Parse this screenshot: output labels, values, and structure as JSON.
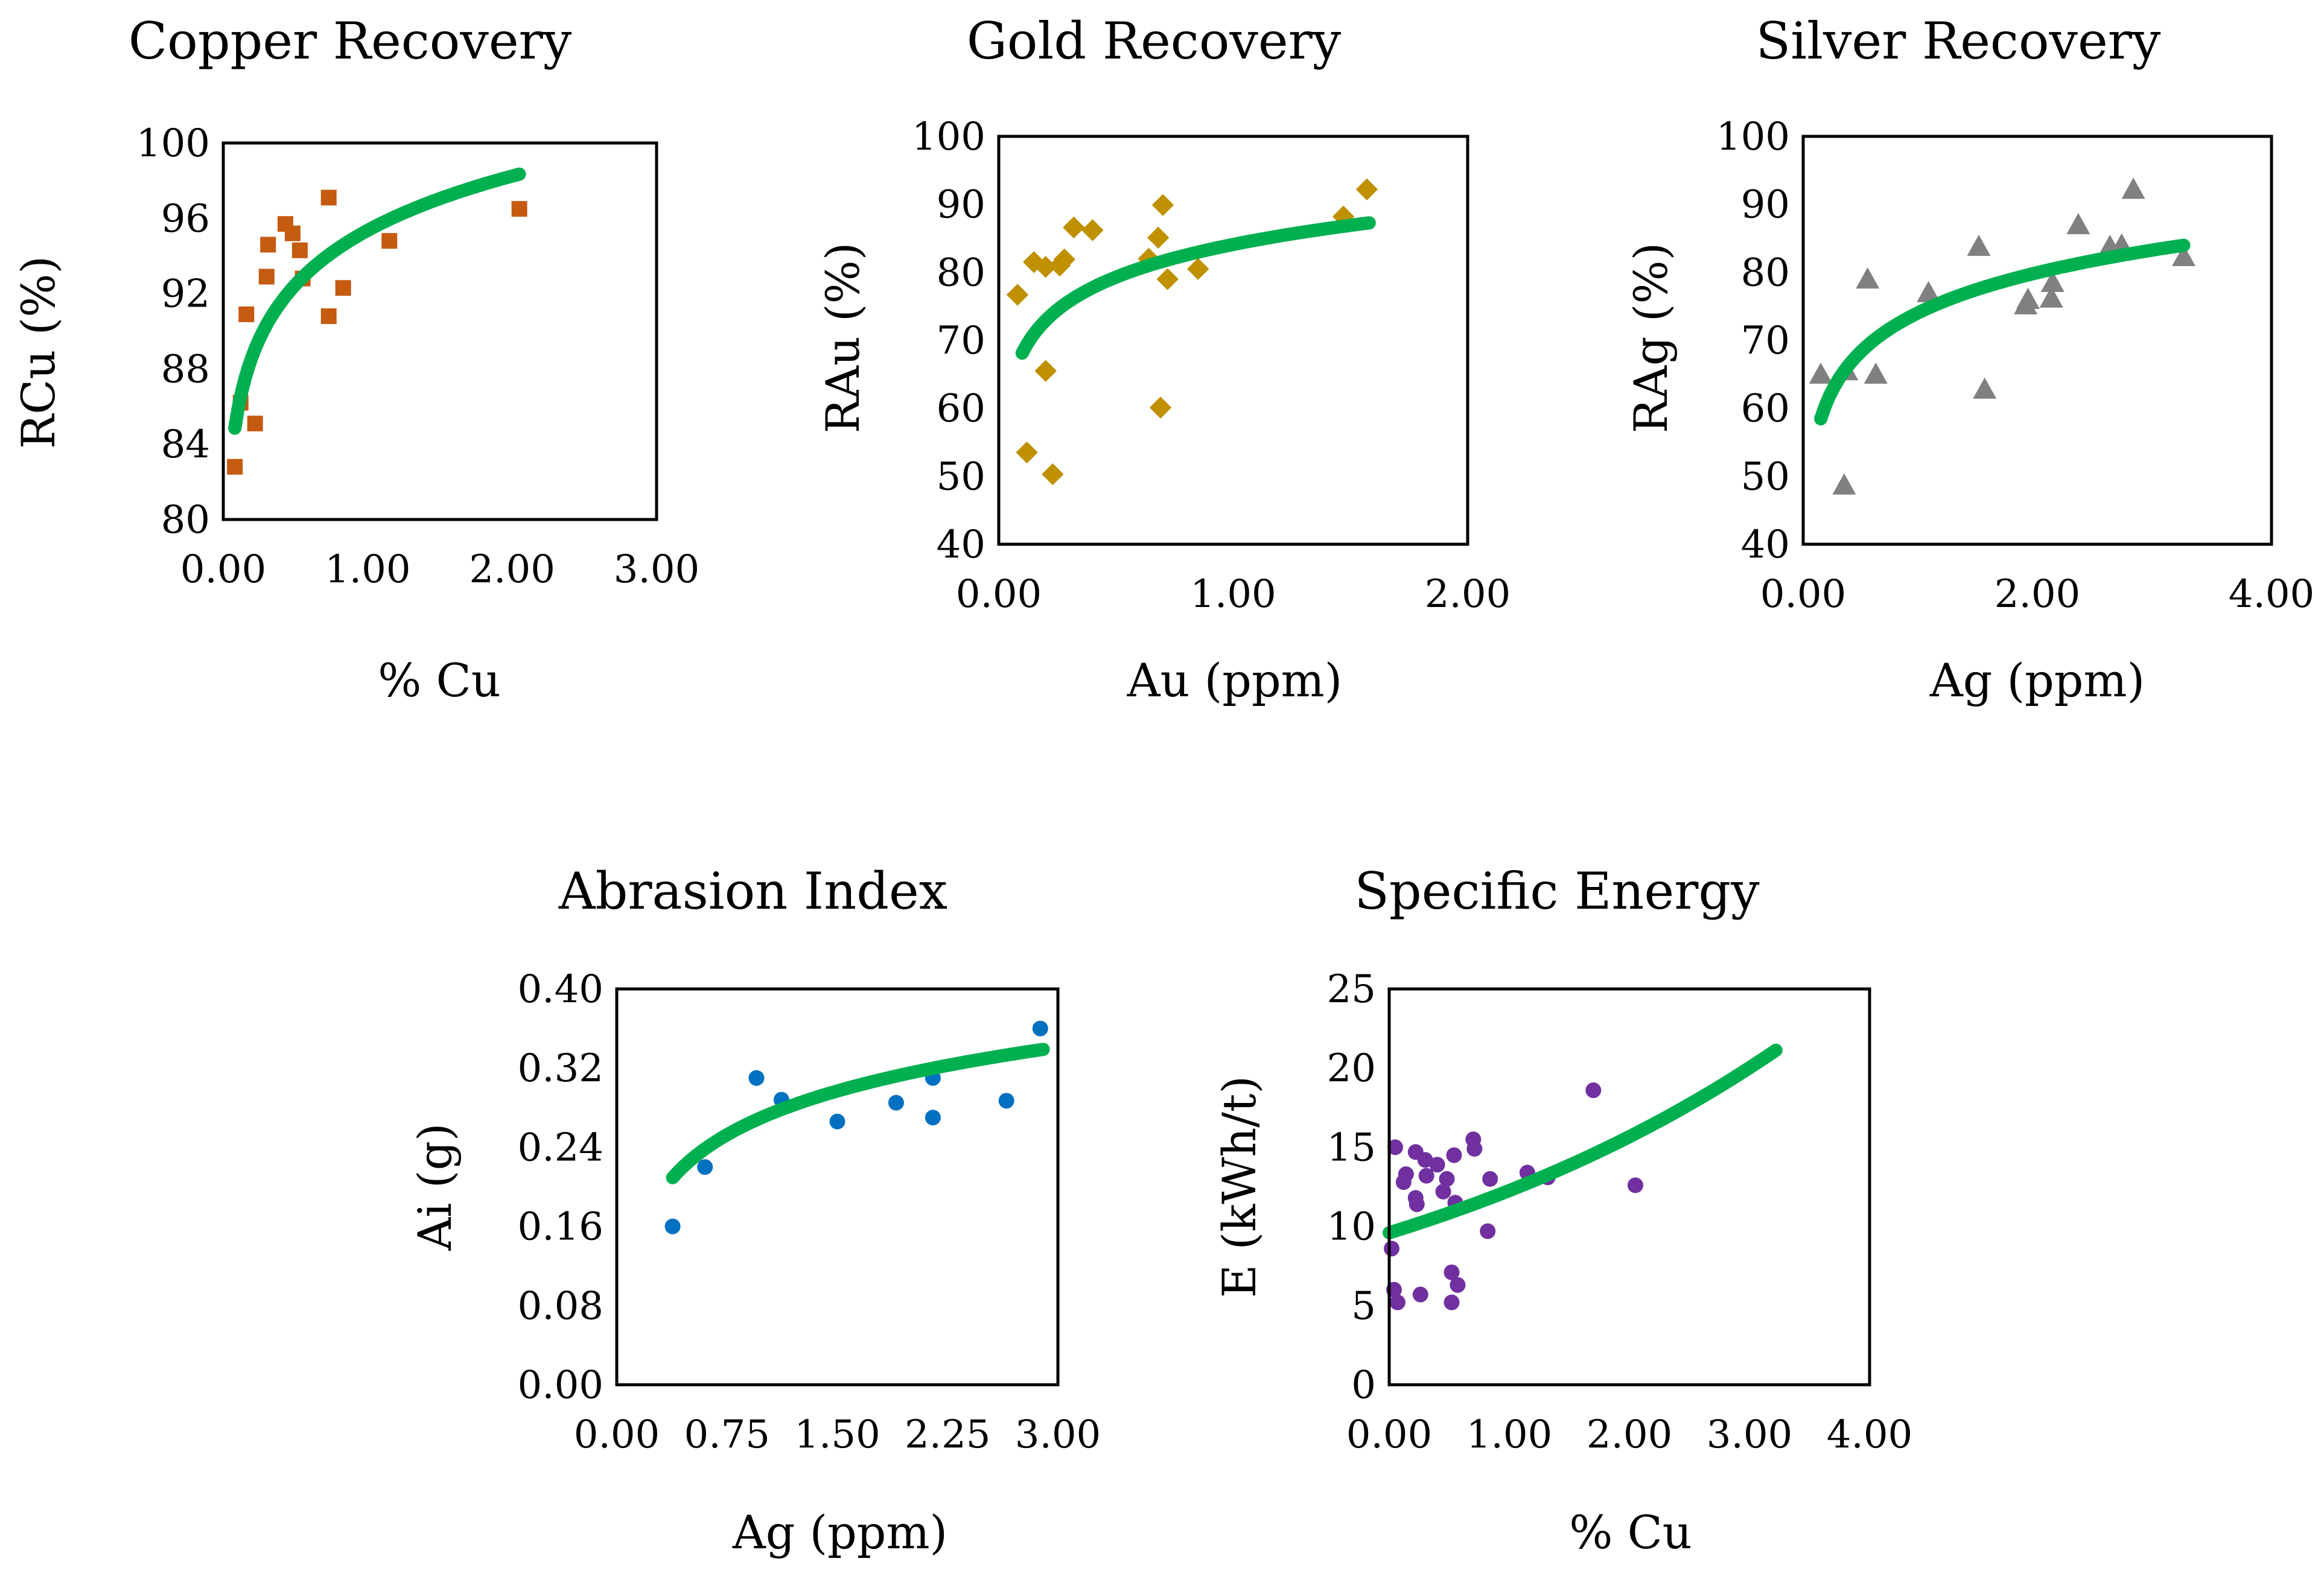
{
  "chart_data": [
    {
      "type": "scatter",
      "title": "Copper Recovery",
      "xlabel": "% Cu",
      "ylabel": "RCu (%)",
      "xlim": [
        0,
        3
      ],
      "ylim": [
        80,
        100
      ],
      "xticks": [
        "0.00",
        "1.00",
        "2.00",
        "3.00"
      ],
      "yticks": [
        "80",
        "84",
        "88",
        "92",
        "96",
        "100"
      ],
      "marker": "square",
      "color": "#C55A11",
      "fit_color": "#00B050",
      "fit": {
        "model": "log",
        "a": 95.36,
        "b": 4.16,
        "x_range": [
          0.08,
          2.05
        ]
      },
      "points": [
        {
          "x": 0.08,
          "y": 82.8
        },
        {
          "x": 0.12,
          "y": 86.2
        },
        {
          "x": 0.16,
          "y": 90.9
        },
        {
          "x": 0.22,
          "y": 85.1
        },
        {
          "x": 0.3,
          "y": 92.9
        },
        {
          "x": 0.31,
          "y": 94.6
        },
        {
          "x": 0.43,
          "y": 95.7
        },
        {
          "x": 0.48,
          "y": 95.2
        },
        {
          "x": 0.53,
          "y": 94.3
        },
        {
          "x": 0.55,
          "y": 92.8
        },
        {
          "x": 0.73,
          "y": 97.1
        },
        {
          "x": 0.73,
          "y": 90.8
        },
        {
          "x": 0.83,
          "y": 92.3
        },
        {
          "x": 1.15,
          "y": 94.8
        },
        {
          "x": 2.05,
          "y": 96.5
        }
      ]
    },
    {
      "type": "scatter",
      "title": "Gold Recovery",
      "xlabel": "Au (ppm)",
      "ylabel": "RAu (%)",
      "xlim": [
        0,
        2
      ],
      "ylim": [
        40,
        100
      ],
      "xticks": [
        "0.00",
        "1.00",
        "2.00"
      ],
      "yticks": [
        "40",
        "50",
        "60",
        "70",
        "80",
        "90",
        "100"
      ],
      "marker": "diamond",
      "color": "#BF9000",
      "fit_color": "#00B050",
      "fit": {
        "model": "log",
        "a": 84.1,
        "b": 6.94,
        "x_range": [
          0.1,
          1.58
        ]
      },
      "points": [
        {
          "x": 0.08,
          "y": 76.7
        },
        {
          "x": 0.12,
          "y": 53.5
        },
        {
          "x": 0.15,
          "y": 81.5
        },
        {
          "x": 0.2,
          "y": 65.5
        },
        {
          "x": 0.2,
          "y": 80.8
        },
        {
          "x": 0.23,
          "y": 50.3
        },
        {
          "x": 0.26,
          "y": 81.0
        },
        {
          "x": 0.28,
          "y": 81.9
        },
        {
          "x": 0.32,
          "y": 86.6
        },
        {
          "x": 0.4,
          "y": 86.2
        },
        {
          "x": 0.64,
          "y": 82.0
        },
        {
          "x": 0.68,
          "y": 85.1
        },
        {
          "x": 0.69,
          "y": 60.1
        },
        {
          "x": 0.7,
          "y": 89.9
        },
        {
          "x": 0.72,
          "y": 79.0
        },
        {
          "x": 0.85,
          "y": 80.5
        },
        {
          "x": 1.47,
          "y": 88.2
        },
        {
          "x": 1.57,
          "y": 92.2
        }
      ]
    },
    {
      "type": "scatter",
      "title": "Silver Recovery",
      "xlabel": "Ag (ppm)",
      "ylabel": "RAg (%)",
      "xlim": [
        0,
        4
      ],
      "ylim": [
        40,
        100
      ],
      "xticks": [
        "0.00",
        "2.00",
        "4.00"
      ],
      "yticks": [
        "40",
        "50",
        "60",
        "70",
        "80",
        "90",
        "100"
      ],
      "marker": "triangle",
      "color": "#808080",
      "fit_color": "#00B050",
      "fit": {
        "model": "log",
        "a": 74.2,
        "b": 8.3,
        "x_range": [
          0.15,
          3.25
        ]
      },
      "points": [
        {
          "x": 0.15,
          "y": 65.0
        },
        {
          "x": 0.35,
          "y": 48.7
        },
        {
          "x": 0.37,
          "y": 65.5
        },
        {
          "x": 0.55,
          "y": 79.0
        },
        {
          "x": 0.62,
          "y": 65.0
        },
        {
          "x": 1.07,
          "y": 77.0
        },
        {
          "x": 1.5,
          "y": 83.8
        },
        {
          "x": 1.55,
          "y": 62.8
        },
        {
          "x": 1.9,
          "y": 75.2
        },
        {
          "x": 1.92,
          "y": 76.0
        },
        {
          "x": 2.12,
          "y": 76.2
        },
        {
          "x": 2.13,
          "y": 78.5
        },
        {
          "x": 2.35,
          "y": 87.0
        },
        {
          "x": 2.62,
          "y": 83.8
        },
        {
          "x": 2.72,
          "y": 84.0
        },
        {
          "x": 2.82,
          "y": 92.2
        },
        {
          "x": 3.25,
          "y": 82.3
        }
      ]
    },
    {
      "type": "scatter",
      "title": "Abrasion Index",
      "xlabel": "Ag (ppm)",
      "ylabel": "Ai (g)",
      "xlim": [
        0,
        3
      ],
      "ylim": [
        0,
        0.4
      ],
      "xticks": [
        "0.00",
        "0.75",
        "1.50",
        "2.25",
        "3.00"
      ],
      "yticks": [
        "0.00",
        "0.08",
        "0.16",
        "0.24",
        "0.32",
        "0.40"
      ],
      "marker": "circle",
      "color": "#0070C0",
      "fit_color": "#00B050",
      "fit": {
        "model": "log",
        "a": 0.271,
        "b": 0.0638,
        "x_range": [
          0.38,
          2.9
        ]
      },
      "points": [
        {
          "x": 0.38,
          "y": 0.16
        },
        {
          "x": 0.6,
          "y": 0.22
        },
        {
          "x": 0.95,
          "y": 0.31
        },
        {
          "x": 1.12,
          "y": 0.288
        },
        {
          "x": 1.5,
          "y": 0.266
        },
        {
          "x": 1.9,
          "y": 0.285
        },
        {
          "x": 2.15,
          "y": 0.31
        },
        {
          "x": 2.15,
          "y": 0.27
        },
        {
          "x": 2.65,
          "y": 0.287
        },
        {
          "x": 2.88,
          "y": 0.36
        }
      ]
    },
    {
      "type": "scatter",
      "title": "Specific Energy",
      "xlabel": "% Cu",
      "ylabel": "E (kWh/t)",
      "xlim": [
        0,
        4
      ],
      "ylim": [
        0,
        25
      ],
      "xticks": [
        "0.00",
        "1.00",
        "2.00",
        "3.00",
        "4.00"
      ],
      "yticks": [
        "0",
        "5",
        "10",
        "15",
        "20",
        "25"
      ],
      "marker": "circle",
      "color": "#7030A0",
      "fit_color": "#00B050",
      "fit": {
        "model": "exp",
        "a": 9.6,
        "b": 0.245,
        "x_range": [
          0.0,
          3.22
        ]
      },
      "points": [
        {
          "x": 0.02,
          "y": 8.6
        },
        {
          "x": 0.04,
          "y": 6.0
        },
        {
          "x": 0.05,
          "y": 15.0
        },
        {
          "x": 0.07,
          "y": 5.2
        },
        {
          "x": 0.12,
          "y": 12.8
        },
        {
          "x": 0.14,
          "y": 13.3
        },
        {
          "x": 0.22,
          "y": 11.8
        },
        {
          "x": 0.22,
          "y": 14.7
        },
        {
          "x": 0.23,
          "y": 11.4
        },
        {
          "x": 0.26,
          "y": 5.7
        },
        {
          "x": 0.3,
          "y": 14.2
        },
        {
          "x": 0.31,
          "y": 13.2
        },
        {
          "x": 0.4,
          "y": 13.9
        },
        {
          "x": 0.45,
          "y": 12.2
        },
        {
          "x": 0.48,
          "y": 13.0
        },
        {
          "x": 0.52,
          "y": 7.1
        },
        {
          "x": 0.52,
          "y": 5.2
        },
        {
          "x": 0.54,
          "y": 14.5
        },
        {
          "x": 0.55,
          "y": 11.5
        },
        {
          "x": 0.57,
          "y": 6.3
        },
        {
          "x": 0.7,
          "y": 15.5
        },
        {
          "x": 0.71,
          "y": 14.9
        },
        {
          "x": 0.82,
          "y": 9.7
        },
        {
          "x": 0.84,
          "y": 13.0
        },
        {
          "x": 1.15,
          "y": 13.4
        },
        {
          "x": 1.32,
          "y": 13.1
        },
        {
          "x": 1.7,
          "y": 18.6
        },
        {
          "x": 2.05,
          "y": 12.6
        }
      ]
    }
  ]
}
